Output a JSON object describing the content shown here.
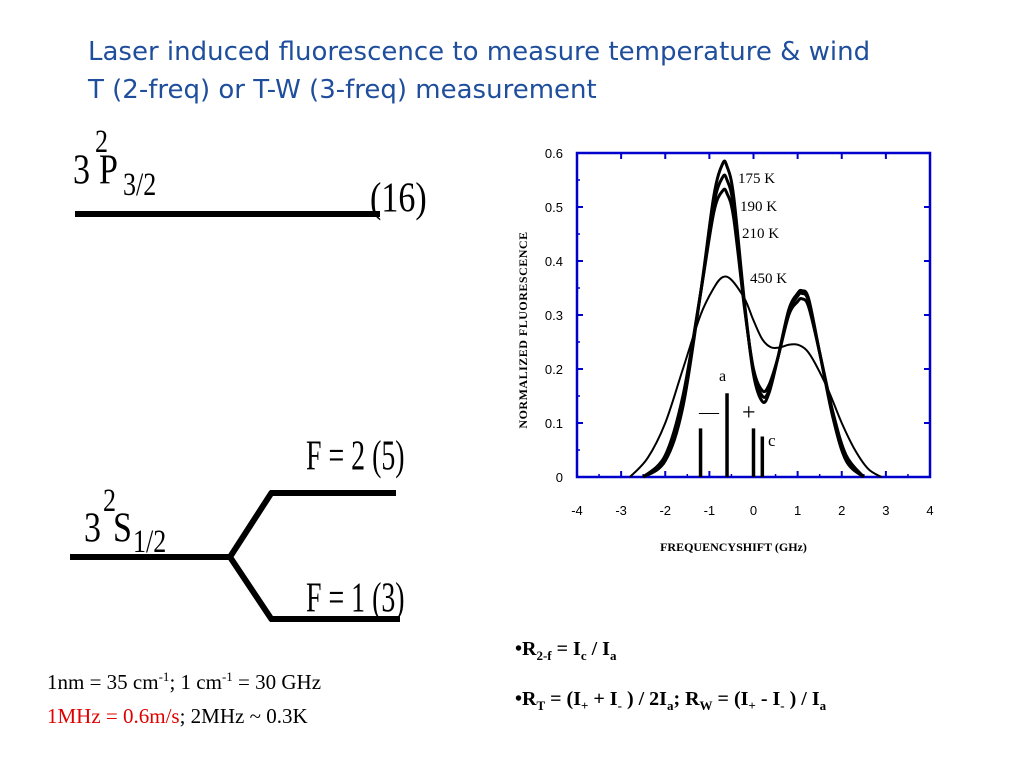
{
  "slide": {
    "title_line1": "Laser induced fluorescence to measure temperature & wind",
    "title_line2": "T (2-freq) or T-W (3-freq) measurement",
    "title_color": "#1f4e9c"
  },
  "energy_diagram": {
    "upper_level": {
      "n": "3",
      "sup": "2",
      "letter": "P",
      "sub": "3/2",
      "degeneracy": "(16)"
    },
    "lower_level": {
      "n": "3",
      "sup": "2",
      "letter": "S",
      "sub": "1/2"
    },
    "f2_label": "F = 2 (5)",
    "f1_label": "F = 1 (3)"
  },
  "notes": {
    "line1_a": "1nm = 35 cm",
    "line1_sup1": "-1",
    "line1_b": "; 1 cm",
    "line1_sup2": "-1",
    "line1_c": " = 30 GHz",
    "line2_red": "1MHz = 0.6m/s",
    "line2_rest": "; 2MHz ~ 0.3K",
    "red_color": "#e00000"
  },
  "formulas": {
    "f1": {
      "bullet": "•",
      "r": "R",
      "r_sub": "2-f",
      "eq": " = I",
      "i_sub": "c",
      "div": " / I",
      "a_sub": "a"
    },
    "f2": {
      "bullet": "•",
      "r": "R",
      "r_sub": "T",
      "p1": " = (I",
      "s1": "+",
      "p2": " + I",
      "s2": "-",
      "p3": " ) / 2I",
      "s3": "a",
      "p4": "; R",
      "s4": "W",
      "p5": " = (I",
      "s5": "+",
      "p6": " - I",
      "s6": "-",
      "p7": " ) / I",
      "s7": "a"
    }
  },
  "chart_data": {
    "type": "line",
    "xlabel": "FREQUENCYSHIFT (GHz)",
    "ylabel": "NORMALIZED FLUORESCENCE",
    "xlim": [
      -4,
      4
    ],
    "ylim": [
      0,
      0.6
    ],
    "x_ticks": [
      "-4",
      "-3",
      "-2",
      "-1",
      "0",
      "1",
      "2",
      "3",
      "4"
    ],
    "y_ticks": [
      "0",
      "0.1",
      "0.2",
      "0.3",
      "0.4",
      "0.5",
      "0.6"
    ],
    "axis_color": "#0000cc",
    "series": [
      {
        "name": "175 K",
        "x": [
          -2.5,
          -2.0,
          -1.6,
          -1.2,
          -0.9,
          -0.7,
          -0.6,
          -0.45,
          -0.2,
          0.0,
          0.2,
          0.35,
          0.55,
          0.8,
          1.0,
          1.1,
          1.25,
          1.5,
          1.8,
          2.1,
          2.5
        ],
        "y": [
          0.0,
          0.03,
          0.13,
          0.34,
          0.52,
          0.58,
          0.575,
          0.52,
          0.32,
          0.19,
          0.14,
          0.155,
          0.22,
          0.31,
          0.34,
          0.345,
          0.33,
          0.23,
          0.11,
          0.03,
          0.0
        ]
      },
      {
        "name": "190 K",
        "x": [
          -2.5,
          -2.0,
          -1.6,
          -1.2,
          -0.9,
          -0.7,
          -0.6,
          -0.45,
          -0.2,
          0.0,
          0.2,
          0.35,
          0.55,
          0.8,
          1.0,
          1.1,
          1.25,
          1.5,
          1.8,
          2.1,
          2.5
        ],
        "y": [
          0.0,
          0.035,
          0.14,
          0.34,
          0.505,
          0.555,
          0.55,
          0.5,
          0.315,
          0.195,
          0.15,
          0.16,
          0.22,
          0.305,
          0.335,
          0.34,
          0.325,
          0.23,
          0.115,
          0.035,
          0.0
        ]
      },
      {
        "name": "210 K",
        "x": [
          -2.5,
          -2.0,
          -1.6,
          -1.2,
          -0.9,
          -0.7,
          -0.6,
          -0.45,
          -0.2,
          0.0,
          0.2,
          0.35,
          0.55,
          0.8,
          1.0,
          1.1,
          1.25,
          1.5,
          1.8,
          2.1,
          2.5
        ],
        "y": [
          0.0,
          0.04,
          0.15,
          0.34,
          0.49,
          0.53,
          0.525,
          0.48,
          0.31,
          0.2,
          0.16,
          0.17,
          0.22,
          0.3,
          0.325,
          0.33,
          0.315,
          0.23,
          0.12,
          0.04,
          0.0
        ]
      },
      {
        "name": "450 K",
        "x": [
          -2.8,
          -2.4,
          -2.0,
          -1.6,
          -1.2,
          -0.9,
          -0.7,
          -0.5,
          -0.2,
          0.0,
          0.2,
          0.4,
          0.6,
          0.8,
          1.0,
          1.2,
          1.4,
          1.7,
          2.0,
          2.3,
          2.6,
          2.9
        ],
        "y": [
          0.0,
          0.035,
          0.1,
          0.2,
          0.3,
          0.35,
          0.37,
          0.365,
          0.33,
          0.29,
          0.255,
          0.24,
          0.24,
          0.245,
          0.245,
          0.235,
          0.21,
          0.16,
          0.1,
          0.05,
          0.015,
          0.0
        ]
      }
    ],
    "series_labels": [
      "175 K",
      "190 K",
      "210 K",
      "450 K"
    ],
    "markers": {
      "a_label": "a",
      "c_label": "c",
      "minus_label": "—",
      "plus_label": "+",
      "lines": [
        {
          "x": -1.2,
          "y": 0.09
        },
        {
          "x": -0.6,
          "y": 0.155
        },
        {
          "x": 0.0,
          "y": 0.09
        },
        {
          "x": 0.2,
          "y": 0.075
        }
      ]
    }
  }
}
